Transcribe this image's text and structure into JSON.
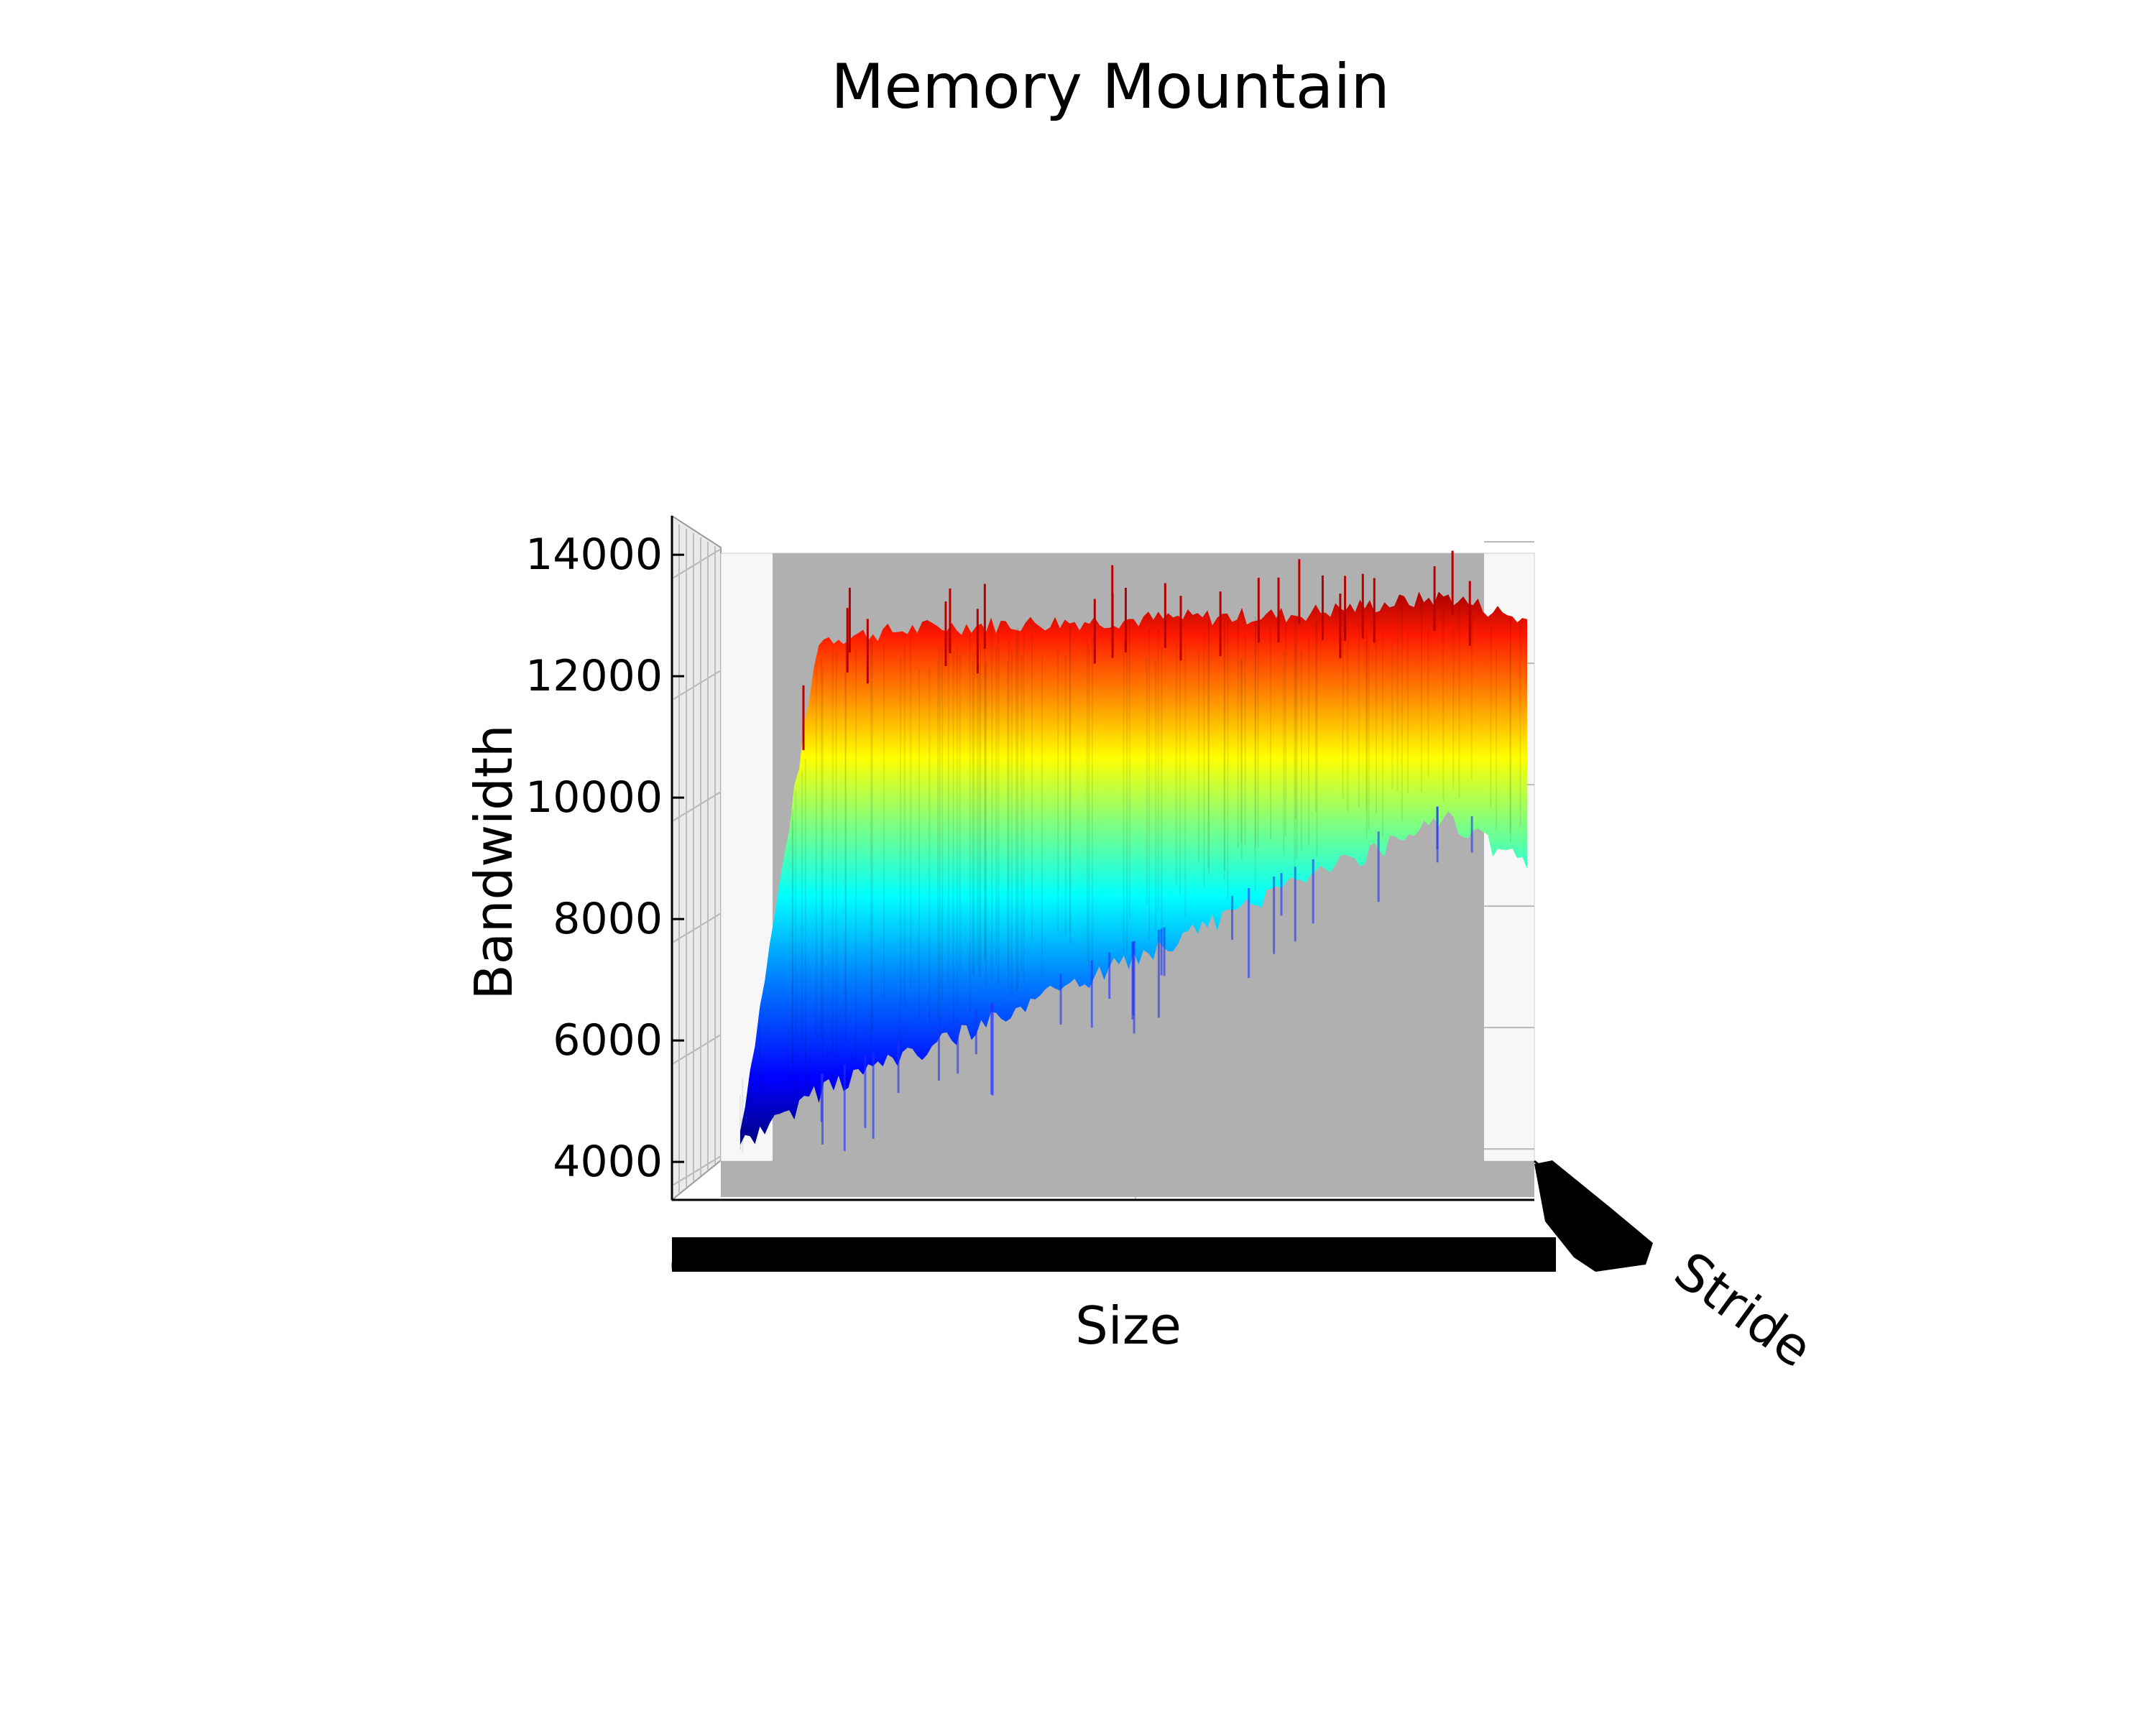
{
  "chart_data": {
    "type": "surface3d",
    "title": "Memory Mountain",
    "xlabel": "Size",
    "ylabel": "Stride",
    "zlabel": "Bandwidth",
    "z_ticks": [
      4000,
      6000,
      8000,
      10000,
      12000,
      14000
    ],
    "zlim": [
      3500,
      14600
    ],
    "colormap": "jet",
    "color_range": [
      4000,
      13400
    ],
    "grid": true,
    "x_tick_labels_note": "tick labels overlap into a solid band",
    "y_tick_labels_note": "tick labels overlap into a solid band",
    "size_rel": [
      0,
      0.1,
      0.25,
      0.45,
      0.7,
      0.9,
      1.0
    ],
    "bandwidth_front_profile": [
      4200,
      5100,
      5900,
      7000,
      8500,
      9600,
      8800
    ],
    "bandwidth_back_profile": [
      4300,
      12400,
      12600,
      12700,
      12800,
      13100,
      12700
    ]
  }
}
